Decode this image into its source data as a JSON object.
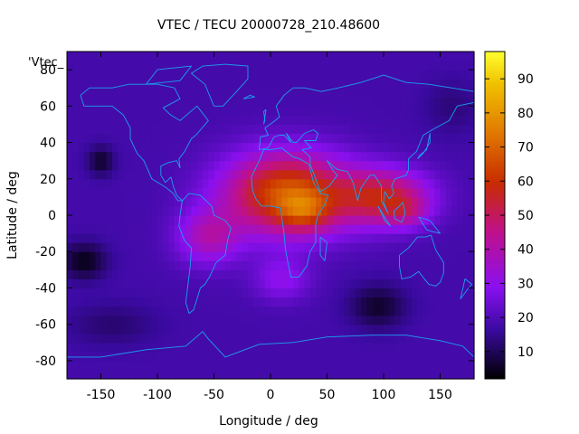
{
  "chart_data": {
    "type": "heatmap",
    "title": "VTEC / TECU 20000728_210.48600",
    "xlabel": "Longitude / deg",
    "ylabel": "Latitude / deg",
    "key_label": "'Vtec_",
    "xlim": [
      -180,
      180
    ],
    "ylim": [
      -90,
      90
    ],
    "xticks": [
      -150,
      -100,
      -50,
      0,
      50,
      100,
      150
    ],
    "yticks": [
      -80,
      -60,
      -40,
      -20,
      0,
      20,
      40,
      60,
      80
    ],
    "colorbar": {
      "range": [
        2,
        98
      ],
      "ticks": [
        10,
        20,
        30,
        40,
        50,
        60,
        70,
        80,
        90
      ]
    },
    "grid": false,
    "background_level": 18,
    "features": [
      {
        "lon": 15,
        "lat": 12,
        "slon": 55,
        "slat": 22,
        "amp": 50
      },
      {
        "lon": 100,
        "lat": 10,
        "slon": 40,
        "slat": 15,
        "amp": 35
      },
      {
        "lon": 30,
        "lat": 2,
        "slon": 22,
        "slat": 10,
        "amp": 18
      },
      {
        "lon": -55,
        "lat": -12,
        "slon": 28,
        "slat": 15,
        "amp": 20
      },
      {
        "lon": 10,
        "lat": -35,
        "slon": 25,
        "slat": 12,
        "amp": 12
      },
      {
        "lon": 120,
        "lat": 2,
        "slon": 18,
        "slat": 8,
        "amp": 12
      },
      {
        "lon": -165,
        "lat": -25,
        "slon": 20,
        "slat": 10,
        "amp": -14
      },
      {
        "lon": -150,
        "lat": 30,
        "slon": 12,
        "slat": 8,
        "amp": -12
      },
      {
        "lon": 95,
        "lat": -50,
        "slon": 25,
        "slat": 12,
        "amp": -12
      },
      {
        "lon": -140,
        "lat": -60,
        "slon": 40,
        "slat": 12,
        "amp": -6
      },
      {
        "lon": 160,
        "lat": 60,
        "slon": 25,
        "slat": 15,
        "amp": -5
      }
    ]
  }
}
